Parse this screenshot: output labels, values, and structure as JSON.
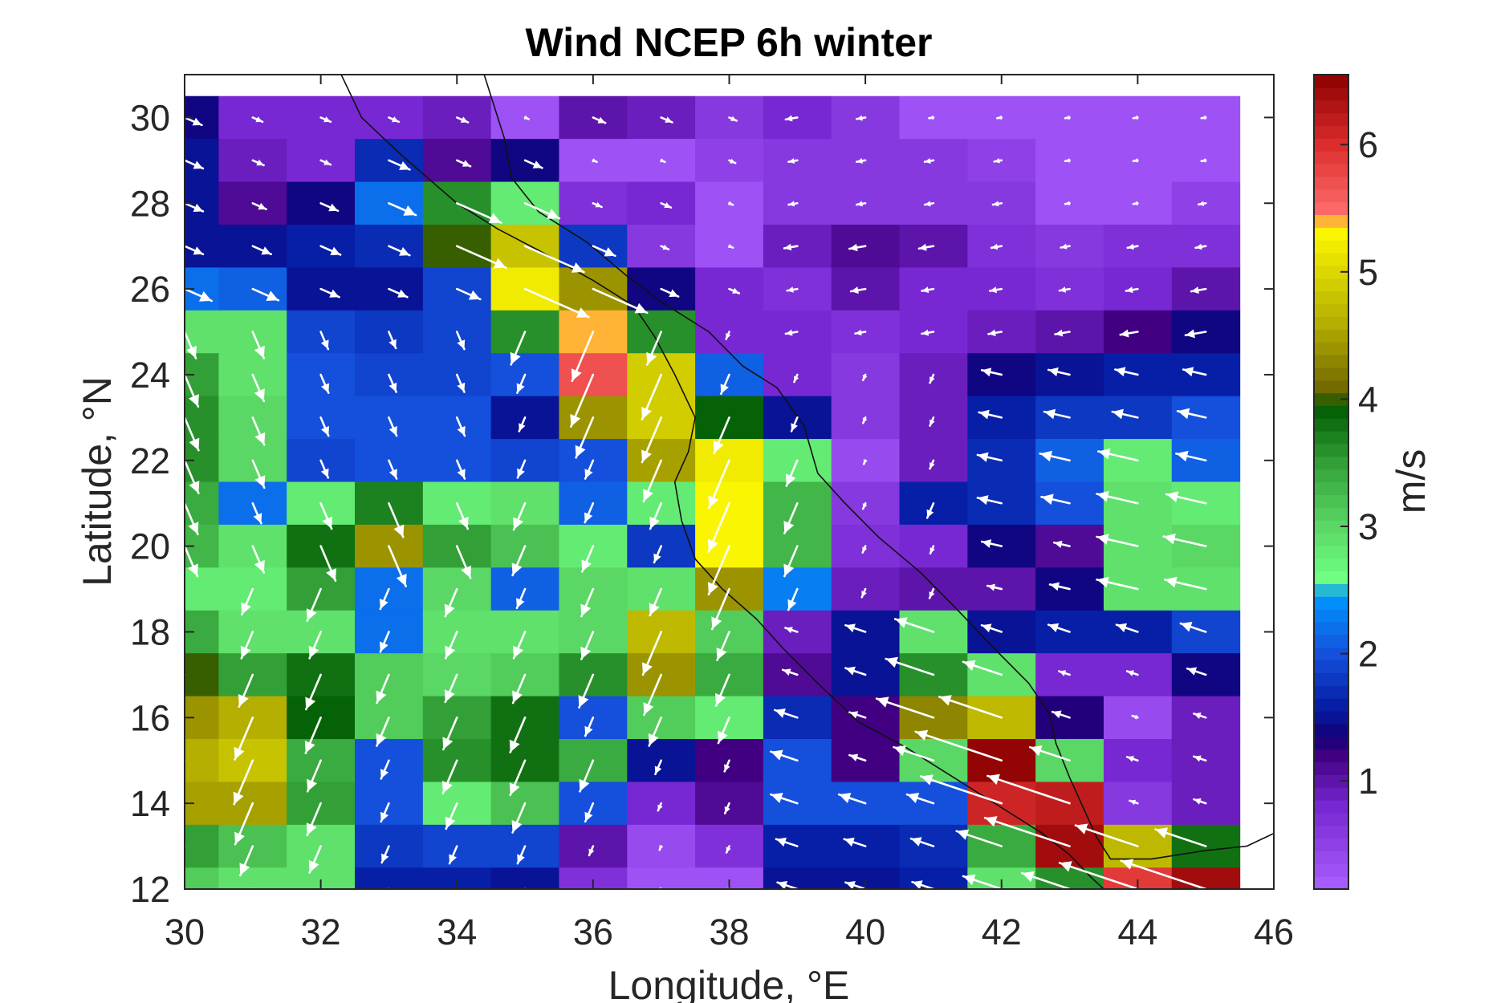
{
  "chart_data": {
    "type": "heatmap",
    "title": "Wind NCEP 6h winter",
    "xlabel": "Longitude, °E",
    "ylabel": "Latitude, °N",
    "colorbar_label": "m/s",
    "xlim": [
      30,
      46
    ],
    "ylim": [
      12,
      31
    ],
    "x_ticks": [
      30,
      32,
      34,
      36,
      38,
      40,
      42,
      44,
      46
    ],
    "y_ticks": [
      12,
      14,
      16,
      18,
      20,
      22,
      24,
      26,
      28,
      30
    ],
    "colorbar_ticks": [
      1,
      2,
      3,
      4,
      5,
      6
    ],
    "colorbar_range": [
      0.15,
      6.55
    ],
    "grid": false,
    "lon_centers": [
      30,
      31,
      32,
      33,
      34,
      35,
      36,
      37,
      38,
      39,
      40,
      41,
      42,
      43,
      44,
      45
    ],
    "lat_centers": [
      30,
      29,
      28,
      27,
      26,
      25,
      24,
      23,
      22,
      21,
      20,
      19,
      18,
      17,
      16,
      15,
      14,
      13,
      12
    ],
    "wind_speed": [
      [
        1.4,
        0.8,
        0.8,
        0.8,
        0.9,
        0.3,
        1.0,
        0.9,
        0.6,
        0.8,
        0.6,
        0.3,
        0.3,
        0.3,
        0.3,
        0.3
      ],
      [
        1.5,
        0.9,
        0.8,
        1.7,
        1.1,
        1.4,
        0.3,
        0.3,
        0.5,
        0.6,
        0.6,
        0.6,
        0.5,
        0.3,
        0.3,
        0.3
      ],
      [
        1.5,
        1.1,
        1.4,
        2.2,
        3.6,
        2.8,
        0.7,
        0.8,
        0.3,
        0.6,
        0.6,
        0.6,
        0.6,
        0.3,
        0.3,
        0.5
      ],
      [
        1.5,
        1.5,
        1.6,
        1.7,
        4.0,
        4.8,
        1.8,
        0.6,
        0.3,
        0.9,
        1.1,
        1.0,
        0.7,
        0.6,
        0.7,
        0.7
      ],
      [
        2.2,
        2.1,
        1.5,
        1.5,
        1.9,
        5.2,
        4.4,
        1.4,
        0.8,
        0.7,
        1.0,
        0.8,
        0.8,
        0.7,
        0.8,
        1.0
      ],
      [
        2.9,
        2.9,
        1.9,
        1.8,
        1.9,
        3.6,
        5.4,
        3.6,
        0.8,
        0.8,
        0.7,
        0.8,
        0.9,
        1.0,
        1.2,
        1.4
      ],
      [
        3.5,
        2.9,
        2.0,
        1.9,
        1.9,
        2.0,
        5.7,
        4.9,
        2.1,
        0.8,
        0.6,
        0.9,
        1.4,
        1.5,
        1.6,
        1.6
      ],
      [
        3.6,
        3.0,
        2.0,
        2.0,
        2.0,
        1.5,
        4.4,
        4.9,
        3.9,
        1.5,
        0.6,
        0.9,
        1.6,
        1.8,
        1.8,
        2.0
      ],
      [
        3.6,
        3.0,
        1.9,
        2.0,
        2.0,
        1.9,
        2.0,
        4.5,
        5.2,
        2.8,
        0.4,
        0.9,
        1.7,
        2.1,
        2.8,
        2.1
      ],
      [
        3.4,
        2.2,
        2.8,
        3.7,
        2.8,
        2.9,
        2.1,
        2.8,
        5.3,
        3.3,
        0.6,
        1.6,
        1.7,
        2.0,
        2.9,
        2.8
      ],
      [
        3.3,
        2.9,
        3.8,
        4.4,
        3.5,
        3.2,
        2.8,
        1.8,
        5.3,
        3.3,
        0.7,
        0.8,
        1.4,
        1.1,
        2.9,
        3.0
      ],
      [
        2.8,
        2.8,
        3.5,
        2.2,
        3.0,
        2.1,
        3.0,
        2.9,
        4.4,
        2.3,
        0.9,
        1.0,
        1.0,
        1.4,
        2.9,
        2.9
      ],
      [
        3.4,
        2.9,
        2.9,
        2.2,
        2.9,
        2.9,
        3.0,
        4.7,
        3.1,
        0.9,
        1.5,
        2.9,
        1.5,
        1.6,
        1.6,
        1.9
      ],
      [
        4.0,
        3.5,
        3.8,
        3.1,
        3.0,
        3.1,
        3.6,
        4.4,
        3.4,
        1.1,
        1.5,
        3.6,
        2.9,
        0.8,
        0.8,
        1.4
      ],
      [
        4.4,
        4.6,
        3.9,
        3.1,
        3.5,
        3.8,
        2.0,
        3.1,
        2.8,
        1.7,
        1.2,
        4.3,
        4.7,
        1.3,
        0.4,
        0.9
      ],
      [
        4.6,
        4.8,
        3.4,
        2.0,
        3.6,
        3.8,
        3.4,
        1.5,
        1.2,
        2.0,
        1.2,
        3.0,
        6.5,
        3.0,
        0.8,
        0.9
      ],
      [
        4.5,
        4.5,
        3.5,
        2.0,
        2.8,
        3.2,
        2.0,
        0.8,
        1.1,
        2.0,
        2.0,
        2.0,
        6.1,
        6.2,
        0.6,
        0.9
      ],
      [
        3.5,
        3.2,
        2.9,
        1.8,
        1.9,
        1.9,
        1.0,
        0.4,
        0.7,
        1.6,
        1.6,
        1.7,
        3.4,
        6.4,
        4.7,
        3.8
      ],
      [
        3.1,
        2.9,
        2.9,
        1.6,
        1.6,
        1.5,
        0.7,
        0.3,
        0.3,
        1.5,
        1.5,
        1.6,
        2.9,
        3.6,
        5.9,
        6.4
      ]
    ]
  }
}
